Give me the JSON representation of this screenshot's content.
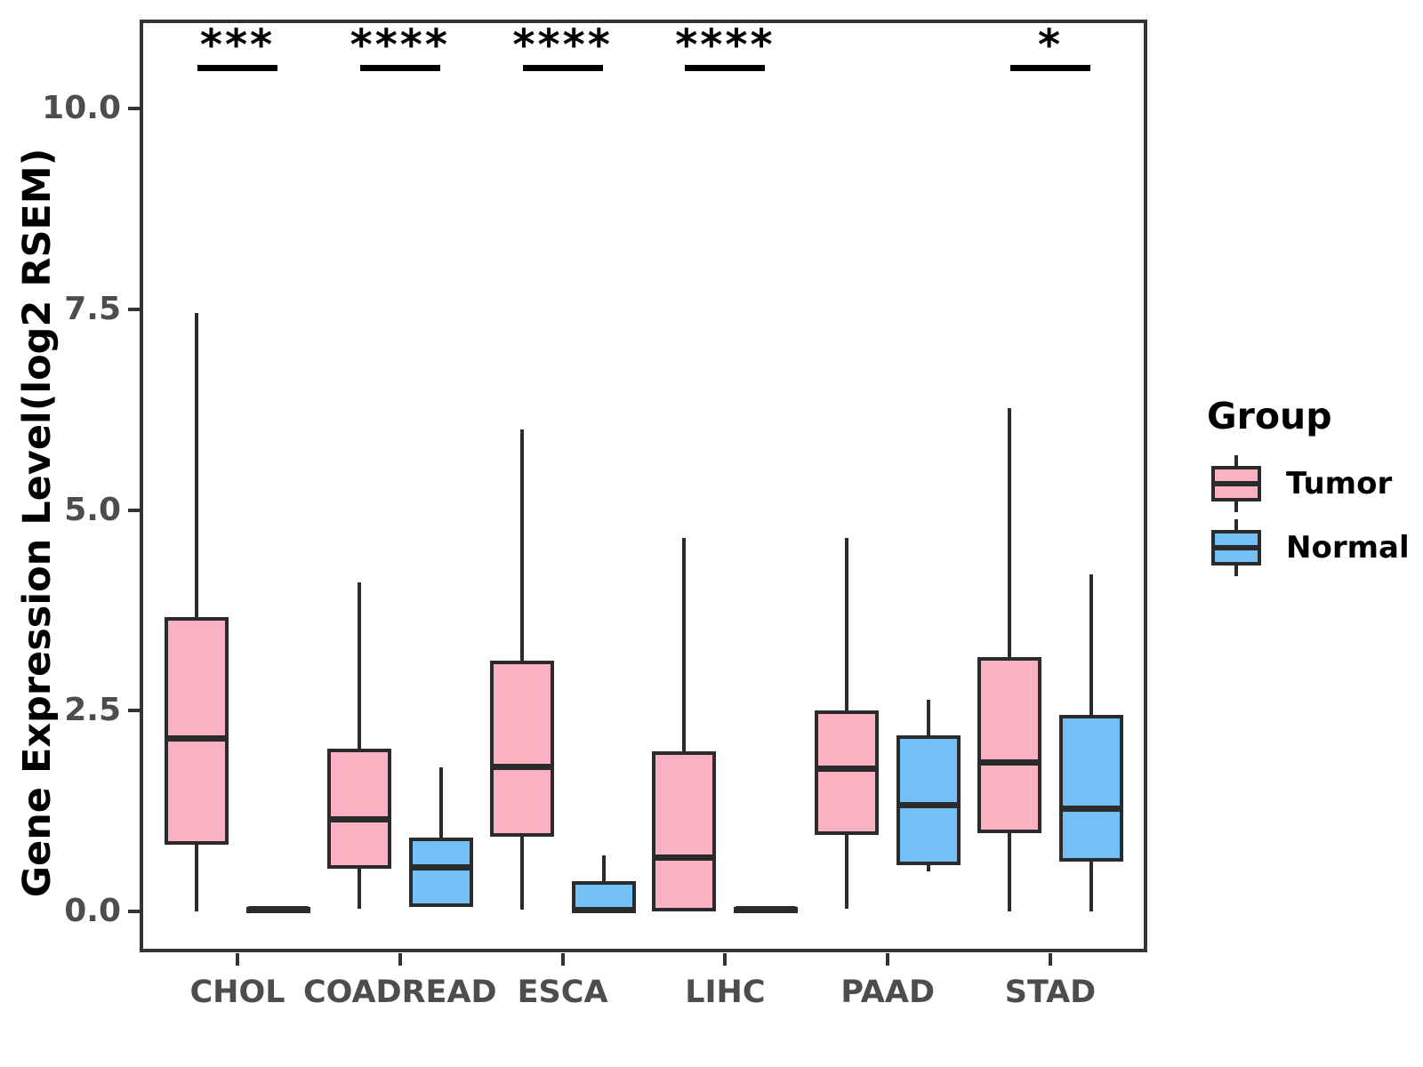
{
  "chart_data": {
    "type": "boxplot",
    "title": "",
    "xlabel": "",
    "ylabel": "Gene Expression Level(log2 RSEM)",
    "ylim": [
      -0.5,
      11.1
    ],
    "grid": false,
    "yticks": [
      0.0,
      2.5,
      5.0,
      7.5,
      10.0
    ],
    "ytick_labels": [
      "0.0",
      "2.5",
      "5.0",
      "7.5",
      "10.0"
    ],
    "categories": [
      "CHOL",
      "COADREAD",
      "ESCA",
      "LIHC",
      "PAAD",
      "STAD"
    ],
    "legend": {
      "title": "Group",
      "position": "right",
      "entries": [
        {
          "label": "Tumor",
          "color": "#FAB2C2"
        },
        {
          "label": "Normal",
          "color": "#72C0F6"
        }
      ]
    },
    "significance": [
      {
        "category": "CHOL",
        "label": "***"
      },
      {
        "category": "COADREAD",
        "label": "****"
      },
      {
        "category": "ESCA",
        "label": "****"
      },
      {
        "category": "LIHC",
        "label": "****"
      },
      {
        "category": "PAAD",
        "label": null
      },
      {
        "category": "STAD",
        "label": "*"
      }
    ],
    "series": [
      {
        "name": "Tumor",
        "color": "#FAB2C2",
        "boxes": [
          {
            "category": "CHOL",
            "low": 0.0,
            "q1": 0.85,
            "median": 2.15,
            "q3": 3.65,
            "high": 7.45
          },
          {
            "category": "COADREAD",
            "low": 0.03,
            "q1": 0.55,
            "median": 1.15,
            "q3": 2.0,
            "high": 4.1
          },
          {
            "category": "ESCA",
            "low": 0.02,
            "q1": 0.95,
            "median": 1.8,
            "q3": 3.1,
            "high": 6.0
          },
          {
            "category": "LIHC",
            "low": 0.0,
            "q1": 0.02,
            "median": 0.67,
            "q3": 1.97,
            "high": 4.65
          },
          {
            "category": "PAAD",
            "low": 0.03,
            "q1": 0.97,
            "median": 1.78,
            "q3": 2.48,
            "high": 4.65
          },
          {
            "category": "STAD",
            "low": 0.0,
            "q1": 1.0,
            "median": 1.86,
            "q3": 3.15,
            "high": 6.27
          }
        ]
      },
      {
        "name": "Normal",
        "color": "#72C0F6",
        "boxes": [
          {
            "category": "CHOL",
            "low": 0.0,
            "q1": 0.0,
            "median": 0.02,
            "q3": 0.04,
            "high": 0.04
          },
          {
            "category": "COADREAD",
            "low": 0.05,
            "q1": 0.08,
            "median": 0.55,
            "q3": 0.9,
            "high": 1.8
          },
          {
            "category": "ESCA",
            "low": 0.0,
            "q1": 0.0,
            "median": 0.02,
            "q3": 0.35,
            "high": 0.7
          },
          {
            "category": "LIHC",
            "low": 0.0,
            "q1": 0.0,
            "median": 0.02,
            "q3": 0.04,
            "high": 0.04
          },
          {
            "category": "PAAD",
            "low": 0.5,
            "q1": 0.6,
            "median": 1.32,
            "q3": 2.17,
            "high": 2.64
          },
          {
            "category": "STAD",
            "low": 0.0,
            "q1": 0.64,
            "median": 1.28,
            "q3": 2.43,
            "high": 4.2
          }
        ]
      }
    ]
  },
  "colors": {
    "box_border": "#2b2b2b",
    "panel_border": "#333333",
    "axis_text": "#4d4d4d",
    "title_text": "#000000",
    "background": "#ffffff"
  }
}
